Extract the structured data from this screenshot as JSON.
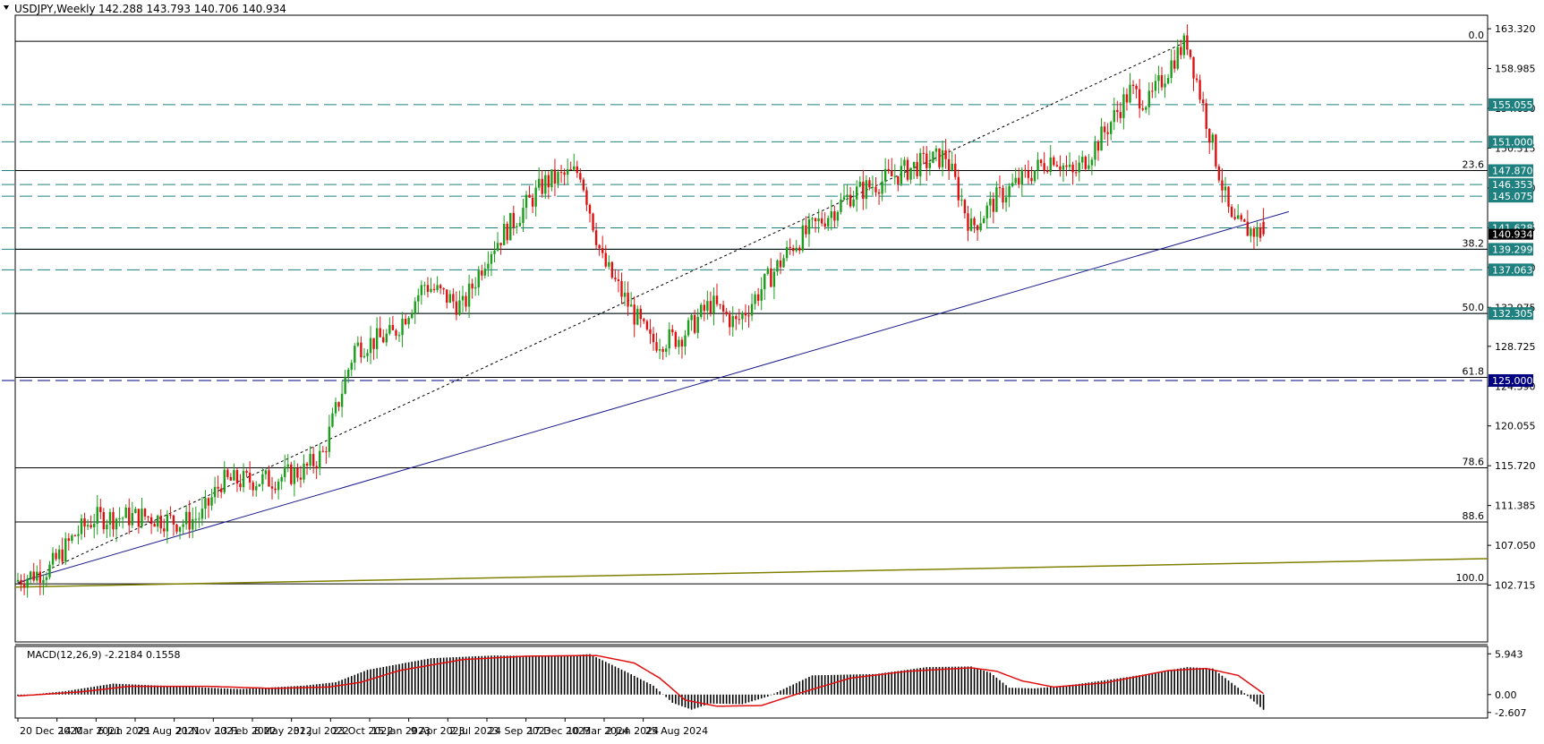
{
  "chart_data": {
    "type": "candlestick",
    "title": "USDJPY,Weekly",
    "ohlc_readout": "142.288 143.793 140.706 140.934",
    "y_axis_ticks": [
      "163.320",
      "158.985",
      "154.650",
      "150.315",
      "145.980",
      "141.645",
      "137.310",
      "132.975",
      "128.725",
      "124.390",
      "120.055",
      "115.720",
      "111.385",
      "107.050",
      "102.715"
    ],
    "ylim": [
      101.5,
      164.5
    ],
    "x_axis_labels": [
      "20 Dec 2020",
      "14 Mar 2021",
      "6 Jun 2021",
      "29 Aug 2021",
      "21 Nov 2021",
      "13 Feb 2022",
      "8 May 2022",
      "31 Jul 2022",
      "23 Oct 2022",
      "15 Jan 2023",
      "9 Apr 2023",
      "2 Jul 2023",
      "24 Sep 2023",
      "17 Dec 2023",
      "10 Mar 2024",
      "2 Jun 2024",
      "25 Aug 2024"
    ],
    "current_price": "140.934",
    "horizontal_levels": [
      {
        "label": "155.055",
        "value": 155.055,
        "style": "dashed",
        "color": "#1f8080"
      },
      {
        "label": "151.000",
        "value": 151.0,
        "style": "dashed",
        "color": "#1f8080"
      },
      {
        "label": "147.870",
        "value": 147.87,
        "style": "solid",
        "color": "#1f8080"
      },
      {
        "label": "146.353",
        "value": 146.353,
        "style": "dashed",
        "color": "#1f8080"
      },
      {
        "label": "145.075",
        "value": 145.075,
        "style": "dashed",
        "color": "#1f8080"
      },
      {
        "label": "141.628",
        "value": 141.628,
        "style": "dashed",
        "color": "#1f8080"
      },
      {
        "label": "139.299",
        "value": 139.299,
        "style": "solid",
        "color": "#1f8080"
      },
      {
        "label": "137.063",
        "value": 137.063,
        "style": "dashed",
        "color": "#1f8080"
      },
      {
        "label": "132.305",
        "value": 132.305,
        "style": "solid",
        "color": "#1f8080"
      },
      {
        "label": "125.000",
        "value": 125.0,
        "style": "dashed",
        "color": "#000080"
      }
    ],
    "fibonacci": [
      {
        "label": "0.0",
        "value": 161.95
      },
      {
        "label": "23.6",
        "value": 147.87
      },
      {
        "label": "38.2",
        "value": 139.299
      },
      {
        "label": "50.0",
        "value": 132.305
      },
      {
        "label": "61.8",
        "value": 125.35
      },
      {
        "label": "78.6",
        "value": 115.5
      },
      {
        "label": "88.6",
        "value": 109.6
      },
      {
        "label": "100.0",
        "value": 102.85
      }
    ],
    "candle_anchors": [
      [
        0,
        103.3
      ],
      [
        10,
        104.5
      ],
      [
        18,
        108.2
      ],
      [
        24,
        110.0
      ],
      [
        40,
        110.2
      ],
      [
        52,
        109.5
      ],
      [
        58,
        110.3
      ],
      [
        64,
        114.0
      ],
      [
        80,
        114.2
      ],
      [
        90,
        115.2
      ],
      [
        96,
        117.0
      ],
      [
        106,
        128.6
      ],
      [
        118,
        130.0
      ],
      [
        128,
        135.5
      ],
      [
        140,
        133.0
      ],
      [
        148,
        139.0
      ],
      [
        166,
        146.6
      ],
      [
        177,
        147.8
      ],
      [
        184,
        138.0
      ],
      [
        190,
        134.5
      ],
      [
        199,
        129.2
      ],
      [
        208,
        129.7
      ],
      [
        212,
        130.9
      ],
      [
        218,
        133.4
      ],
      [
        226,
        131.2
      ],
      [
        244,
        139.8
      ],
      [
        262,
        145.2
      ],
      [
        282,
        148.3
      ],
      [
        292,
        149.5
      ],
      [
        300,
        141.6
      ],
      [
        308,
        144.8
      ],
      [
        326,
        149.5
      ],
      [
        332,
        147.3
      ],
      [
        340,
        151.0
      ],
      [
        350,
        156.5
      ],
      [
        356,
        155.3
      ],
      [
        364,
        160.2
      ],
      [
        368,
        161.95
      ],
      [
        375,
        152.0
      ],
      [
        382,
        142.0
      ],
      [
        392,
        140.93
      ]
    ],
    "trendline_support": [
      [
        0,
        103.0
      ],
      [
        400,
        143.4
      ]
    ],
    "trendline_fib_diagonal": [
      [
        0,
        102.85
      ],
      [
        368,
        161.95
      ]
    ],
    "moving_average_long": [
      [
        0,
        102.5
      ],
      [
        400,
        105.6
      ]
    ],
    "macd": {
      "label": "MACD(12,26,9) -2.2184 0.1558",
      "axis_ticks": [
        "5.943",
        "0.00",
        "-2.607"
      ],
      "ylim": [
        -2.9,
        6.5
      ],
      "histogram_anchors": [
        [
          0,
          -0.2
        ],
        [
          15,
          0.5
        ],
        [
          30,
          1.6
        ],
        [
          50,
          1.2
        ],
        [
          70,
          0.8
        ],
        [
          90,
          1.3
        ],
        [
          100,
          1.8
        ],
        [
          110,
          3.6
        ],
        [
          130,
          5.3
        ],
        [
          150,
          5.7
        ],
        [
          170,
          5.6
        ],
        [
          180,
          5.9
        ],
        [
          192,
          3.2
        ],
        [
          200,
          1.3
        ],
        [
          206,
          -1.2
        ],
        [
          212,
          -2.2
        ],
        [
          218,
          -1.3
        ],
        [
          228,
          -1.4
        ],
        [
          236,
          -0.3
        ],
        [
          250,
          2.8
        ],
        [
          270,
          3.0
        ],
        [
          286,
          4.0
        ],
        [
          300,
          4.1
        ],
        [
          306,
          3.2
        ],
        [
          312,
          1.0
        ],
        [
          320,
          0.9
        ],
        [
          330,
          1.3
        ],
        [
          350,
          2.6
        ],
        [
          368,
          4.0
        ],
        [
          376,
          3.8
        ],
        [
          384,
          1.0
        ],
        [
          392,
          -2.2184
        ]
      ],
      "signal_anchors": [
        [
          0,
          -0.2
        ],
        [
          20,
          0.4
        ],
        [
          35,
          1.2
        ],
        [
          60,
          1.2
        ],
        [
          80,
          0.9
        ],
        [
          98,
          1.1
        ],
        [
          108,
          1.8
        ],
        [
          120,
          3.5
        ],
        [
          140,
          5.1
        ],
        [
          160,
          5.6
        ],
        [
          182,
          5.7
        ],
        [
          194,
          4.6
        ],
        [
          202,
          2.4
        ],
        [
          210,
          -0.8
        ],
        [
          220,
          -1.7
        ],
        [
          234,
          -1.6
        ],
        [
          246,
          0.2
        ],
        [
          262,
          2.4
        ],
        [
          280,
          3.4
        ],
        [
          300,
          3.9
        ],
        [
          308,
          3.4
        ],
        [
          316,
          2.0
        ],
        [
          326,
          1.1
        ],
        [
          342,
          1.7
        ],
        [
          362,
          3.5
        ],
        [
          374,
          3.8
        ],
        [
          384,
          2.8
        ],
        [
          392,
          0.1558
        ]
      ]
    }
  }
}
